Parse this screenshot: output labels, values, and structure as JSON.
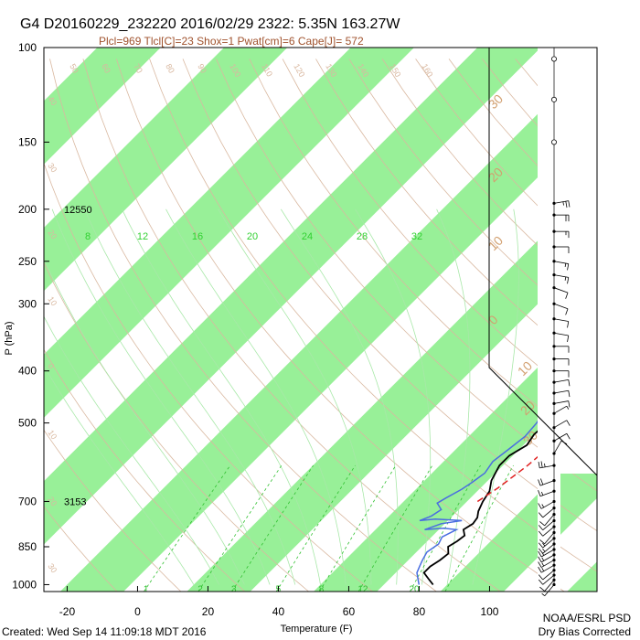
{
  "title": "G4 D20160229_232220 2016/02/29 2322:  5.35N 163.27W",
  "subtitle": "Plcl=969 Tlcl[C]=23 Shox=1 Pwat[cm]=6 Cape[J]= 572",
  "credit_left": "Created: Wed Sep 14 11:09:18 MDT 2016",
  "credit_right_1": "NOAA/ESRL PSD",
  "credit_right_2": "Dry Bias Corrected",
  "colors": {
    "band_fill": "#98f098",
    "dry_adiabat": "#d9b8a0",
    "moist_adiabat": "#a8e8a8",
    "mixing_ratio": "#30c030",
    "temperature": "#000000",
    "dewpoint": "#4a6ee0",
    "parcel": "#e02020",
    "subtitle": "#a0522d",
    "isotherm_label": "#d2a070",
    "mixing_top_label": "#30d030"
  },
  "chart_data": {
    "type": "line",
    "title": "G4 D20160229_232220 2016/02/29 2322:  5.35N 163.27W",
    "xlabel": "Temperature (F)",
    "ylabel": "P (hPa)",
    "xlim": [
      -30,
      110
    ],
    "ylim": [
      1030,
      100
    ],
    "y_log_scale": true,
    "x_ticks": [
      "-20",
      "0",
      "20",
      "40",
      "60",
      "80",
      "100"
    ],
    "y_ticks": [
      "100",
      "150",
      "200",
      "250",
      "300",
      "400",
      "500",
      "700",
      "850",
      "1000"
    ],
    "height_labels": [
      {
        "p": 200,
        "text": "12550"
      },
      {
        "p": 700,
        "text": "3153"
      }
    ],
    "isotherm_labels_celsius": [
      "30",
      "20",
      "10",
      "0",
      "10",
      "20",
      "30"
    ],
    "dry_adiabat_labels": [
      "50",
      "60",
      "70",
      "80",
      "90",
      "100",
      "110",
      "120",
      "130",
      "140",
      "150",
      "160"
    ],
    "dry_adiabat_left_labels": [
      "40",
      "30",
      "20",
      "10",
      "0",
      "10",
      "20",
      "30"
    ],
    "mixing_ratio_labels": [
      "1",
      "2",
      "3",
      "5",
      "8",
      "12",
      "20"
    ],
    "mixing_ratio_top_labels": [
      "8",
      "12",
      "16",
      "20",
      "24",
      "28",
      "32"
    ],
    "series": [
      {
        "name": "Temperature",
        "points": [
          [
            82,
            1000
          ],
          [
            79,
            975
          ],
          [
            76,
            950
          ],
          [
            76,
            925
          ],
          [
            77,
            900
          ],
          [
            77.5,
            875
          ],
          [
            75.5,
            850
          ],
          [
            76.5,
            830
          ],
          [
            77,
            810
          ],
          [
            75,
            790
          ],
          [
            76,
            770
          ],
          [
            75.5,
            750
          ],
          [
            74,
            730
          ],
          [
            72.5,
            700
          ],
          [
            71.5,
            670
          ],
          [
            69,
            640
          ],
          [
            67,
            600
          ],
          [
            67,
            575
          ],
          [
            69,
            550
          ],
          [
            68,
            525
          ],
          [
            68.5,
            500
          ],
          [
            67.5,
            470
          ],
          [
            66,
            440
          ],
          [
            64.5,
            410
          ],
          [
            63,
            380
          ],
          [
            61,
            350
          ],
          [
            58,
            320
          ],
          [
            55,
            300
          ],
          [
            52,
            280
          ],
          [
            48,
            260
          ],
          [
            45,
            245
          ],
          [
            42,
            230
          ],
          [
            39,
            215
          ],
          [
            37,
            205
          ],
          [
            35,
            193
          ]
        ]
      },
      {
        "name": "Dewpoint",
        "points": [
          [
            78,
            1000
          ],
          [
            76,
            975
          ],
          [
            74,
            950
          ],
          [
            73,
            925
          ],
          [
            72,
            900
          ],
          [
            71,
            870
          ],
          [
            72,
            840
          ],
          [
            71,
            815
          ],
          [
            73,
            790
          ],
          [
            69,
            785
          ],
          [
            64,
            790
          ],
          [
            67,
            770
          ],
          [
            72,
            760
          ],
          [
            64,
            755
          ],
          [
            60,
            760
          ],
          [
            62,
            745
          ],
          [
            63,
            725
          ],
          [
            60,
            705
          ],
          [
            61,
            690
          ],
          [
            63,
            665
          ],
          [
            64,
            645
          ],
          [
            65,
            620
          ],
          [
            64,
            590
          ],
          [
            65,
            560
          ],
          [
            66,
            530
          ],
          [
            65.5,
            500
          ],
          [
            64,
            470
          ],
          [
            62,
            440
          ],
          [
            61,
            400
          ],
          [
            58,
            360
          ],
          [
            55,
            330
          ],
          [
            51,
            305
          ],
          [
            48,
            285
          ],
          [
            44,
            268
          ],
          [
            40,
            250
          ],
          [
            37,
            235
          ],
          [
            34,
            218
          ],
          [
            32,
            210
          ]
        ]
      },
      {
        "name": "Parcel",
        "points": [
          [
            71,
            700
          ],
          [
            73,
            660
          ],
          [
            75,
            600
          ],
          [
            76,
            550
          ],
          [
            76,
            500
          ],
          [
            75,
            450
          ],
          [
            73.5,
            400
          ],
          [
            71,
            350
          ],
          [
            68,
            320
          ],
          [
            65,
            300
          ],
          [
            61,
            280
          ],
          [
            57,
            265
          ],
          [
            53,
            245
          ],
          [
            49,
            230
          ],
          [
            44,
            215
          ],
          [
            38,
            198
          ]
        ]
      }
    ],
    "wind_levels_hpa": [
      1000,
      980,
      960,
      940,
      920,
      900,
      880,
      860,
      840,
      820,
      800,
      780,
      760,
      740,
      720,
      700,
      670,
      640,
      600,
      570,
      540,
      510,
      480,
      460,
      440,
      420,
      400,
      380,
      360,
      340,
      320,
      300,
      280,
      265,
      250,
      235,
      220,
      205,
      195,
      150,
      125,
      105
    ],
    "wind_speeds_kt": [
      5,
      10,
      10,
      10,
      15,
      15,
      15,
      15,
      15,
      15,
      10,
      10,
      10,
      10,
      10,
      15,
      15,
      20,
      25,
      10,
      10,
      10,
      5,
      10,
      10,
      10,
      10,
      10,
      10,
      10,
      10,
      10,
      10,
      15,
      15,
      10,
      15,
      20,
      25,
      0,
      0,
      0
    ],
    "wind_dirs_deg": [
      220,
      220,
      230,
      230,
      240,
      240,
      240,
      240,
      230,
      230,
      220,
      230,
      230,
      220,
      230,
      240,
      250,
      250,
      260,
      30,
      60,
      60,
      60,
      80,
      80,
      80,
      90,
      90,
      90,
      100,
      100,
      110,
      110,
      100,
      100,
      90,
      90,
      90,
      80,
      0,
      0,
      0
    ]
  }
}
